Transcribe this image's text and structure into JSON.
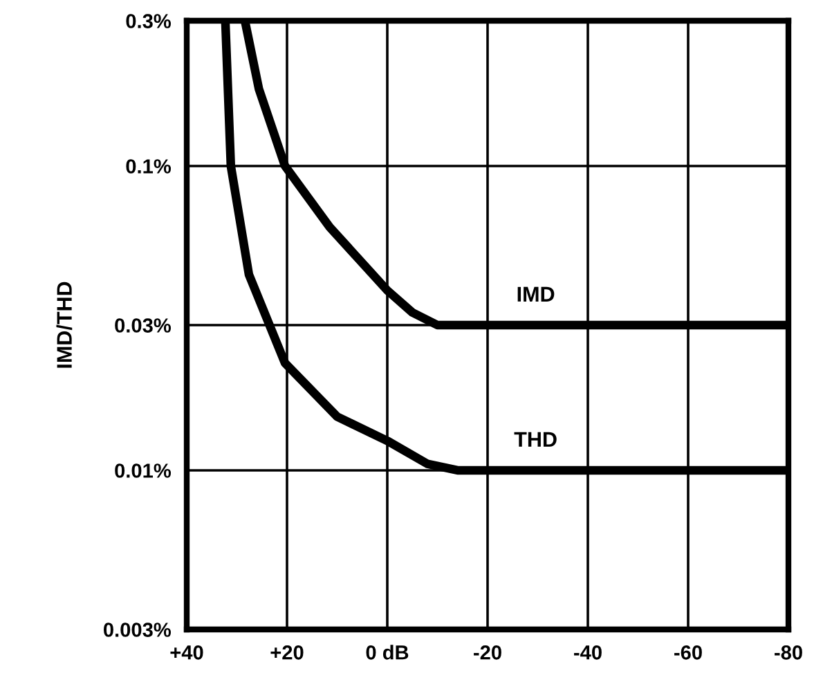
{
  "chart_data": {
    "type": "line",
    "ylabel": "IMD/THD",
    "series": [
      {
        "name": "IMD",
        "color": "#000000",
        "x": [
          28.4,
          25.6,
          20.4,
          11.5,
          0,
          -5,
          -10,
          -80
        ],
        "values": [
          0.3,
          0.179,
          0.1,
          0.063,
          0.039,
          0.033,
          0.03,
          0.03
        ]
      },
      {
        "name": "THD",
        "color": "#000000",
        "x": [
          32.3,
          31.2,
          27.6,
          20.4,
          10,
          0,
          -8,
          -14,
          -80
        ],
        "values": [
          0.3,
          0.1,
          0.044,
          0.0225,
          0.015,
          0.0125,
          0.0105,
          0.01,
          0.01
        ]
      }
    ],
    "xlim": [
      40,
      -80
    ],
    "xticks": [
      {
        "value": 40,
        "label": "+40"
      },
      {
        "value": 20,
        "label": "+20"
      },
      {
        "value": 0,
        "label": "0 dB"
      },
      -20,
      -40,
      -60,
      -80
    ],
    "log": "y",
    "ylim": [
      0.003,
      0.3
    ],
    "yticks": [
      {
        "value": 0.003,
        "label": "0.003%"
      },
      {
        "value": 0.01,
        "label": "0.01%"
      },
      {
        "value": 0.03,
        "label": "0.03%"
      },
      {
        "value": 0.1,
        "label": "0.1%"
      },
      {
        "value": 0.3,
        "label": "0.3%"
      }
    ],
    "grid": true,
    "legend": false,
    "marker": "none",
    "line_style": "solid"
  }
}
